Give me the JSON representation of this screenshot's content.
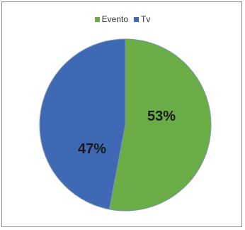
{
  "chart_data": {
    "type": "pie",
    "slices": [
      {
        "label": "Evento",
        "value": 53,
        "display": "53%",
        "color": "#6aac46"
      },
      {
        "label": "Tv",
        "value": 47,
        "display": "47%",
        "color": "#3f69b5"
      }
    ],
    "legend": [
      "Evento",
      "Tv"
    ],
    "legend_position": "top"
  }
}
